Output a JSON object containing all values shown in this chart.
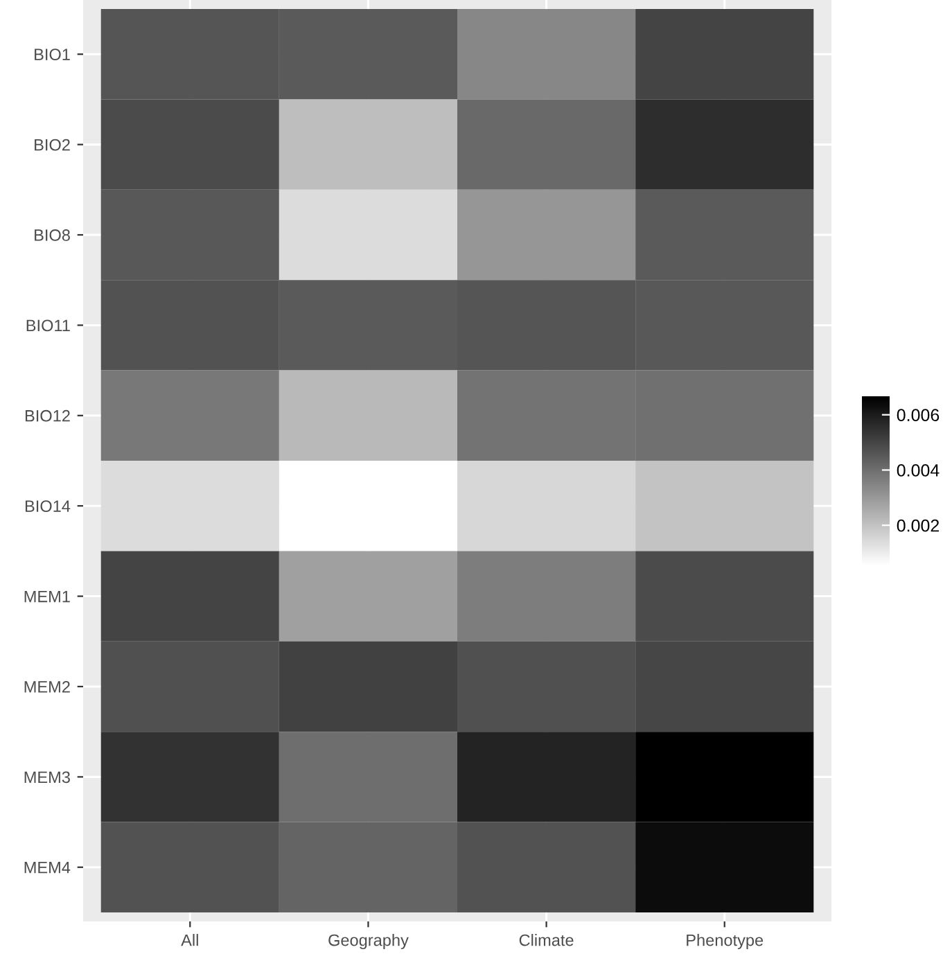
{
  "chart_data": {
    "type": "heatmap",
    "categories": [
      "All",
      "Geography",
      "Climate",
      "Phenotype"
    ],
    "y_categories": [
      "BIO1",
      "BIO2",
      "BIO8",
      "BIO11",
      "BIO12",
      "BIO14",
      "MEM1",
      "MEM2",
      "MEM3",
      "MEM4"
    ],
    "cells": [
      [
        0.00463,
        0.00451,
        0.00343,
        0.00504
      ],
      [
        0.00487,
        0.00211,
        0.00415,
        0.00559
      ],
      [
        0.00456,
        0.00139,
        0.00307,
        0.00451
      ],
      [
        0.0047,
        0.00451,
        0.00463,
        0.00456
      ],
      [
        0.00379,
        0.00223,
        0.00391,
        0.00398
      ],
      [
        0.00139,
        0.00055,
        0.00151,
        0.00199
      ],
      [
        0.00504,
        0.00283,
        0.00367,
        0.00487
      ],
      [
        0.00475,
        0.00511,
        0.00475,
        0.00499
      ],
      [
        0.00547,
        0.00403,
        0.00583,
        0.00667
      ],
      [
        0.0047,
        0.00427,
        0.0047,
        0.00638
      ]
    ],
    "clim": [
      0.00055,
      0.00667
    ],
    "cticks": [
      0.002,
      0.004,
      0.006
    ],
    "grid": true
  }
}
